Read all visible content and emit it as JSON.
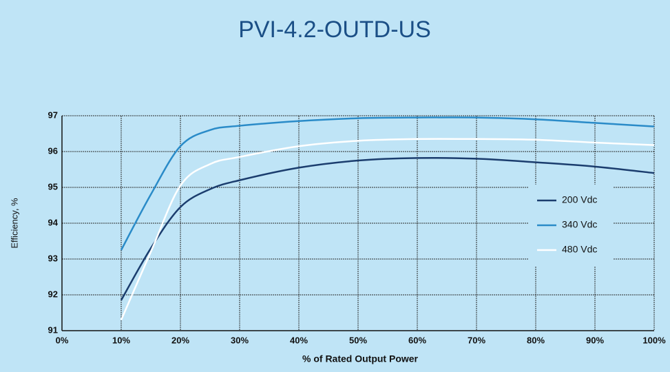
{
  "chart_data": {
    "type": "line",
    "title": "PVI-4.2-OUTD-US",
    "x_label": "% of Rated Output Power",
    "y_label": "Efficiency, %",
    "x": [
      10,
      15,
      20,
      25,
      30,
      40,
      50,
      60,
      70,
      80,
      90,
      100
    ],
    "series": [
      {
        "name": "200 Vdc",
        "color": "#1b3d6e",
        "values": [
          91.85,
          93.3,
          94.45,
          94.95,
          95.2,
          95.55,
          95.75,
          95.82,
          95.8,
          95.7,
          95.58,
          95.4
        ]
      },
      {
        "name": "340 Vdc",
        "color": "#2a8bc8",
        "values": [
          93.25,
          94.8,
          96.15,
          96.6,
          96.72,
          96.85,
          96.93,
          96.95,
          96.95,
          96.9,
          96.8,
          96.7
        ]
      },
      {
        "name": "480 Vdc",
        "color": "#ffffff",
        "values": [
          91.3,
          93.2,
          95.05,
          95.65,
          95.85,
          96.15,
          96.3,
          96.35,
          96.35,
          96.33,
          96.25,
          96.18
        ]
      }
    ],
    "xlim": [
      0,
      100
    ],
    "xticks": [
      {
        "value": 0,
        "label": "0%"
      },
      {
        "value": 10,
        "label": "10%"
      },
      {
        "value": 20,
        "label": "20%"
      },
      {
        "value": 30,
        "label": "30%"
      },
      {
        "value": 40,
        "label": "40%"
      },
      {
        "value": 50,
        "label": "50%"
      },
      {
        "value": 60,
        "label": "60%"
      },
      {
        "value": 70,
        "label": "70%"
      },
      {
        "value": 80,
        "label": "80%"
      },
      {
        "value": 90,
        "label": "90%"
      },
      {
        "value": 100,
        "label": "100%"
      }
    ],
    "ylim": [
      91,
      97
    ],
    "yticks": [
      91,
      92,
      93,
      94,
      95,
      96,
      97
    ],
    "grid": true,
    "legend": "right"
  }
}
